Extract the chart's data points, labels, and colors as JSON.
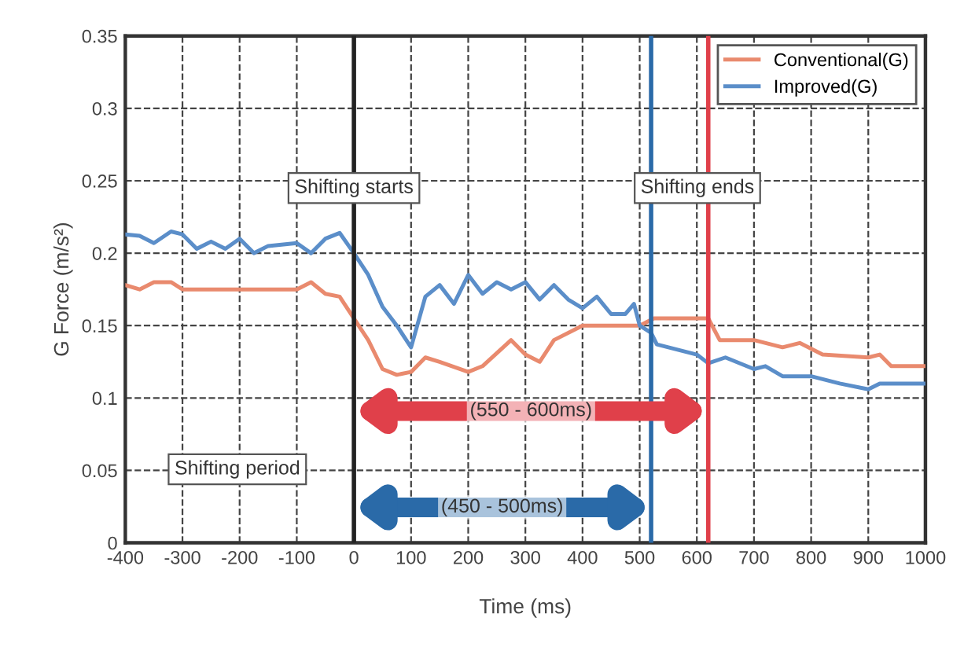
{
  "chart_data": {
    "type": "line",
    "xlabel": "Time (ms)",
    "ylabel": "G Force (m/s²)",
    "xlim": [
      -400,
      1000
    ],
    "xticks": [
      -400,
      -300,
      -200,
      -100,
      0,
      100,
      200,
      300,
      400,
      500,
      600,
      700,
      800,
      900,
      1000
    ],
    "ylim": [
      0,
      0.35
    ],
    "yticks": [
      {
        "value": 0,
        "label": "0"
      },
      0.05,
      {
        "value": 0.1,
        "label": "0.1"
      },
      0.15,
      {
        "value": 0.2,
        "label": "0.2"
      },
      0.25,
      {
        "value": 0.3,
        "label": "0.3"
      },
      0.35
    ],
    "grid": true,
    "legend": "top right",
    "marker": "none",
    "line_style": "solid",
    "series": [
      {
        "name": "Conventional(G)",
        "color": "#e98a6e",
        "x": [
          -400,
          -375,
          -350,
          -320,
          -300,
          -100,
          -75,
          -50,
          -25,
          0,
          25,
          50,
          75,
          100,
          125,
          150,
          200,
          225,
          275,
          300,
          325,
          350,
          400,
          450,
          500,
          525,
          600,
          620,
          640,
          700,
          750,
          780,
          820,
          900,
          920,
          940,
          1000
        ],
        "values": [
          0.178,
          0.175,
          0.18,
          0.18,
          0.175,
          0.175,
          0.18,
          0.172,
          0.17,
          0.155,
          0.14,
          0.12,
          0.116,
          0.118,
          0.128,
          0.125,
          0.118,
          0.122,
          0.14,
          0.13,
          0.125,
          0.14,
          0.15,
          0.15,
          0.15,
          0.155,
          0.155,
          0.155,
          0.14,
          0.14,
          0.135,
          0.138,
          0.13,
          0.128,
          0.13,
          0.122,
          0.122
        ]
      },
      {
        "name": "Improved(G)",
        "color": "#5b8ec9",
        "x": [
          -400,
          -375,
          -350,
          -320,
          -300,
          -275,
          -250,
          -225,
          -200,
          -175,
          -150,
          -100,
          -75,
          -50,
          -25,
          0,
          25,
          50,
          75,
          100,
          125,
          150,
          175,
          200,
          225,
          250,
          275,
          300,
          325,
          350,
          375,
          400,
          425,
          450,
          475,
          490,
          500,
          520,
          530,
          600,
          620,
          650,
          700,
          720,
          750,
          800,
          850,
          900,
          920,
          1000
        ],
        "values": [
          0.213,
          0.212,
          0.207,
          0.215,
          0.213,
          0.203,
          0.208,
          0.203,
          0.21,
          0.2,
          0.205,
          0.207,
          0.2,
          0.21,
          0.214,
          0.2,
          0.185,
          0.163,
          0.15,
          0.135,
          0.17,
          0.178,
          0.165,
          0.185,
          0.172,
          0.18,
          0.175,
          0.18,
          0.168,
          0.178,
          0.168,
          0.162,
          0.17,
          0.158,
          0.158,
          0.165,
          0.15,
          0.145,
          0.137,
          0.13,
          0.124,
          0.128,
          0.12,
          0.122,
          0.115,
          0.115,
          0.11,
          0.106,
          0.11,
          0.11
        ]
      }
    ],
    "ref_lines": [
      {
        "axis": "x",
        "value": 0,
        "color": "#222222",
        "label": "Shifting starts"
      },
      {
        "axis": "x",
        "value": 520,
        "color": "#2a6aa8"
      },
      {
        "axis": "x",
        "value": 620,
        "color": "#e0404a"
      }
    ],
    "annotations": [
      "Shifting ends",
      "Shifting period",
      "(550 - 600ms)",
      "(450 - 500ms)"
    ]
  }
}
